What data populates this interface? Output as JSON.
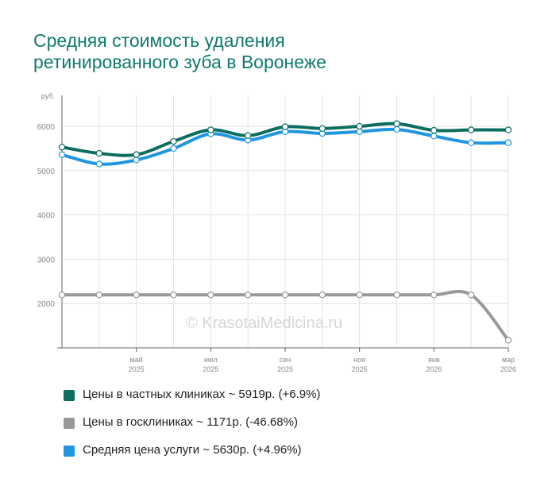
{
  "title_lines": [
    "Средняя стоимость удаления",
    "ретинированного зуба в Воронеже"
  ],
  "watermark": "© KrasotaiMedicina.ru",
  "chart_data": {
    "type": "line",
    "ylabel": "руб.",
    "ylim": [
      1000,
      6700
    ],
    "y_ticks": [
      2000,
      3000,
      4000,
      5000,
      6000
    ],
    "x": [
      "2025-03",
      "2025-04",
      "2025-05",
      "2025-06",
      "2025-07",
      "2025-08",
      "2025-09",
      "2025-10",
      "2025-11",
      "2025-12",
      "2026-01",
      "2026-02",
      "2026-03"
    ],
    "x_tick_labels": [
      {
        "index": 2,
        "month": "май",
        "year": "2025"
      },
      {
        "index": 4,
        "month": "июл",
        "year": "2025"
      },
      {
        "index": 6,
        "month": "сен",
        "year": "2025"
      },
      {
        "index": 8,
        "month": "ноя",
        "year": "2025"
      },
      {
        "index": 10,
        "month": "янв",
        "year": "2026"
      },
      {
        "index": 12,
        "month": "мар",
        "year": "2026"
      }
    ],
    "grid": true,
    "legend_position": "bottom",
    "series": [
      {
        "name": "Цены в госклиниках",
        "legend": "Цены в госклиниках ~ 1171р. (-46.68%)",
        "color": "#999999",
        "values": [
          2196,
          2196,
          2196,
          2196,
          2196,
          2196,
          2196,
          2196,
          2196,
          2196,
          2196,
          2196,
          1171
        ]
      },
      {
        "name": "Средняя цена услуги",
        "legend": "Средняя цена услуги ~ 5630р. (+4.96%)",
        "color": "#2196e0",
        "values": [
          5360,
          5150,
          5240,
          5500,
          5830,
          5690,
          5880,
          5840,
          5880,
          5930,
          5780,
          5630,
          5630
        ]
      },
      {
        "name": "Цены в частных клиниках",
        "legend": "Цены в частных клиниках ~ 5919р. (+6.9%)",
        "color": "#0b6e60",
        "values": [
          5530,
          5390,
          5360,
          5660,
          5920,
          5790,
          5990,
          5950,
          6000,
          6060,
          5910,
          5919,
          5919
        ]
      }
    ]
  },
  "legend_items": [
    {
      "label": "Цены в частных клиниках ~ 5919р. (+6.9%)",
      "color": "#0b6e60"
    },
    {
      "label": "Цены в госклиниках ~ 1171р. (-46.68%)",
      "color": "#999999"
    },
    {
      "label": "Средняя цена услуги ~ 5630р. (+4.96%)",
      "color": "#2196e0"
    }
  ]
}
